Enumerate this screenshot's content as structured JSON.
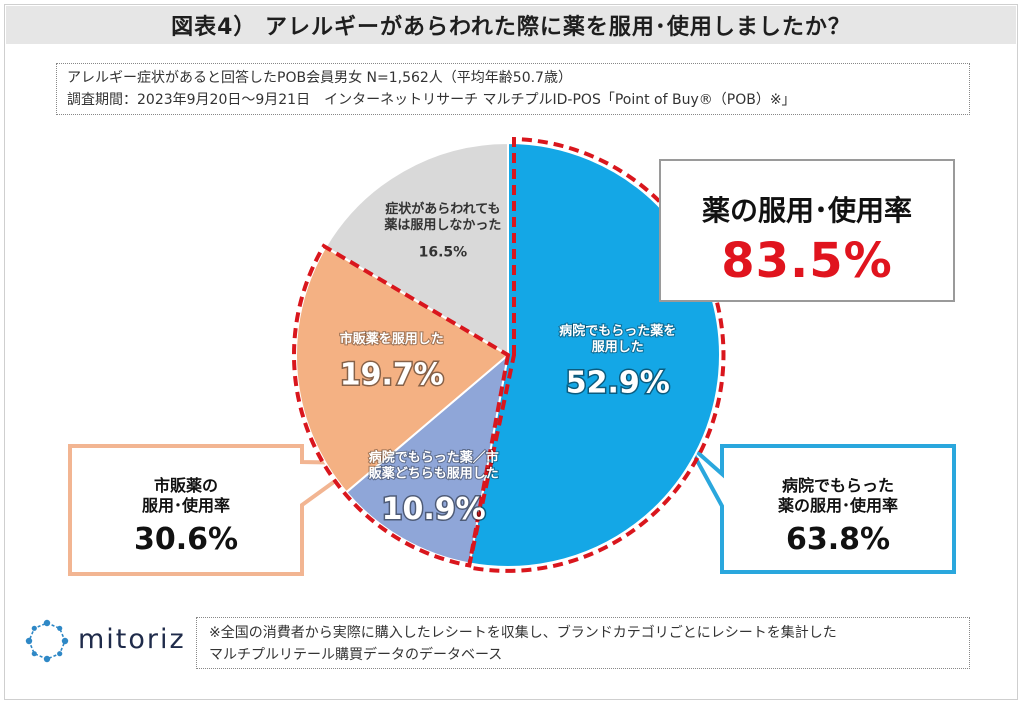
{
  "title": "図表4） アレルギーがあらわれた際に薬を服用･使用しましたか？",
  "info": {
    "line1": "アレルギー症状があると回答したPOB会員男女 N=1,562人（平均年齢50.7歳）",
    "line2": "調査期間：2023年9月20日～9月21日　インターネットリサーチ マルチプルID-POS「Point of Buy®（POB）※」"
  },
  "callouts": {
    "total_label": "薬の服用･使用率",
    "total_value": "83.5%",
    "ot_label_line1": "市販薬の",
    "ot_label_line2": "服用･使用率",
    "ot_value": "30.6%",
    "hosp_label_line1": "病院でもらった",
    "hosp_label_line2": "薬の服用･使用率",
    "hosp_value": "63.8%"
  },
  "chart_data": {
    "type": "pie",
    "start": "12 o'clock, clockwise",
    "slices": [
      {
        "label_lines": [
          "病院でもらった薬を",
          "服用した"
        ],
        "value": 52.9,
        "value_label": "52.9%",
        "color": "#14a7e6",
        "highlight": true
      },
      {
        "label_lines": [
          "病院でもらった薬／市",
          "販薬どちらも服用した"
        ],
        "value": 10.9,
        "value_label": "10.9%",
        "color": "#8fa6d8",
        "highlight": true
      },
      {
        "label_lines": [
          "市販薬を服用した"
        ],
        "value": 19.7,
        "value_label": "19.7%",
        "color": "#f4b183",
        "highlight": true
      },
      {
        "label_lines": [
          "症状があらわれても",
          "薬は服用しなかった"
        ],
        "value": 16.5,
        "value_label": "16.5%",
        "color": "#d9d9d9",
        "highlight": false
      }
    ]
  },
  "colors": {
    "highlight_dash": "#d9161d",
    "hospital_callout_border": "#2aa7dd",
    "otc_callout_border": "#f2b592",
    "total_value": "#e0141e"
  },
  "logo_text": "mitoriz",
  "footer": {
    "line1": "※全国の消費者から実際に購入したレシートを収集し、ブランドカテゴリごとにレシートを集計した",
    "line2": "マルチプルリテール購買データのデータベース"
  }
}
